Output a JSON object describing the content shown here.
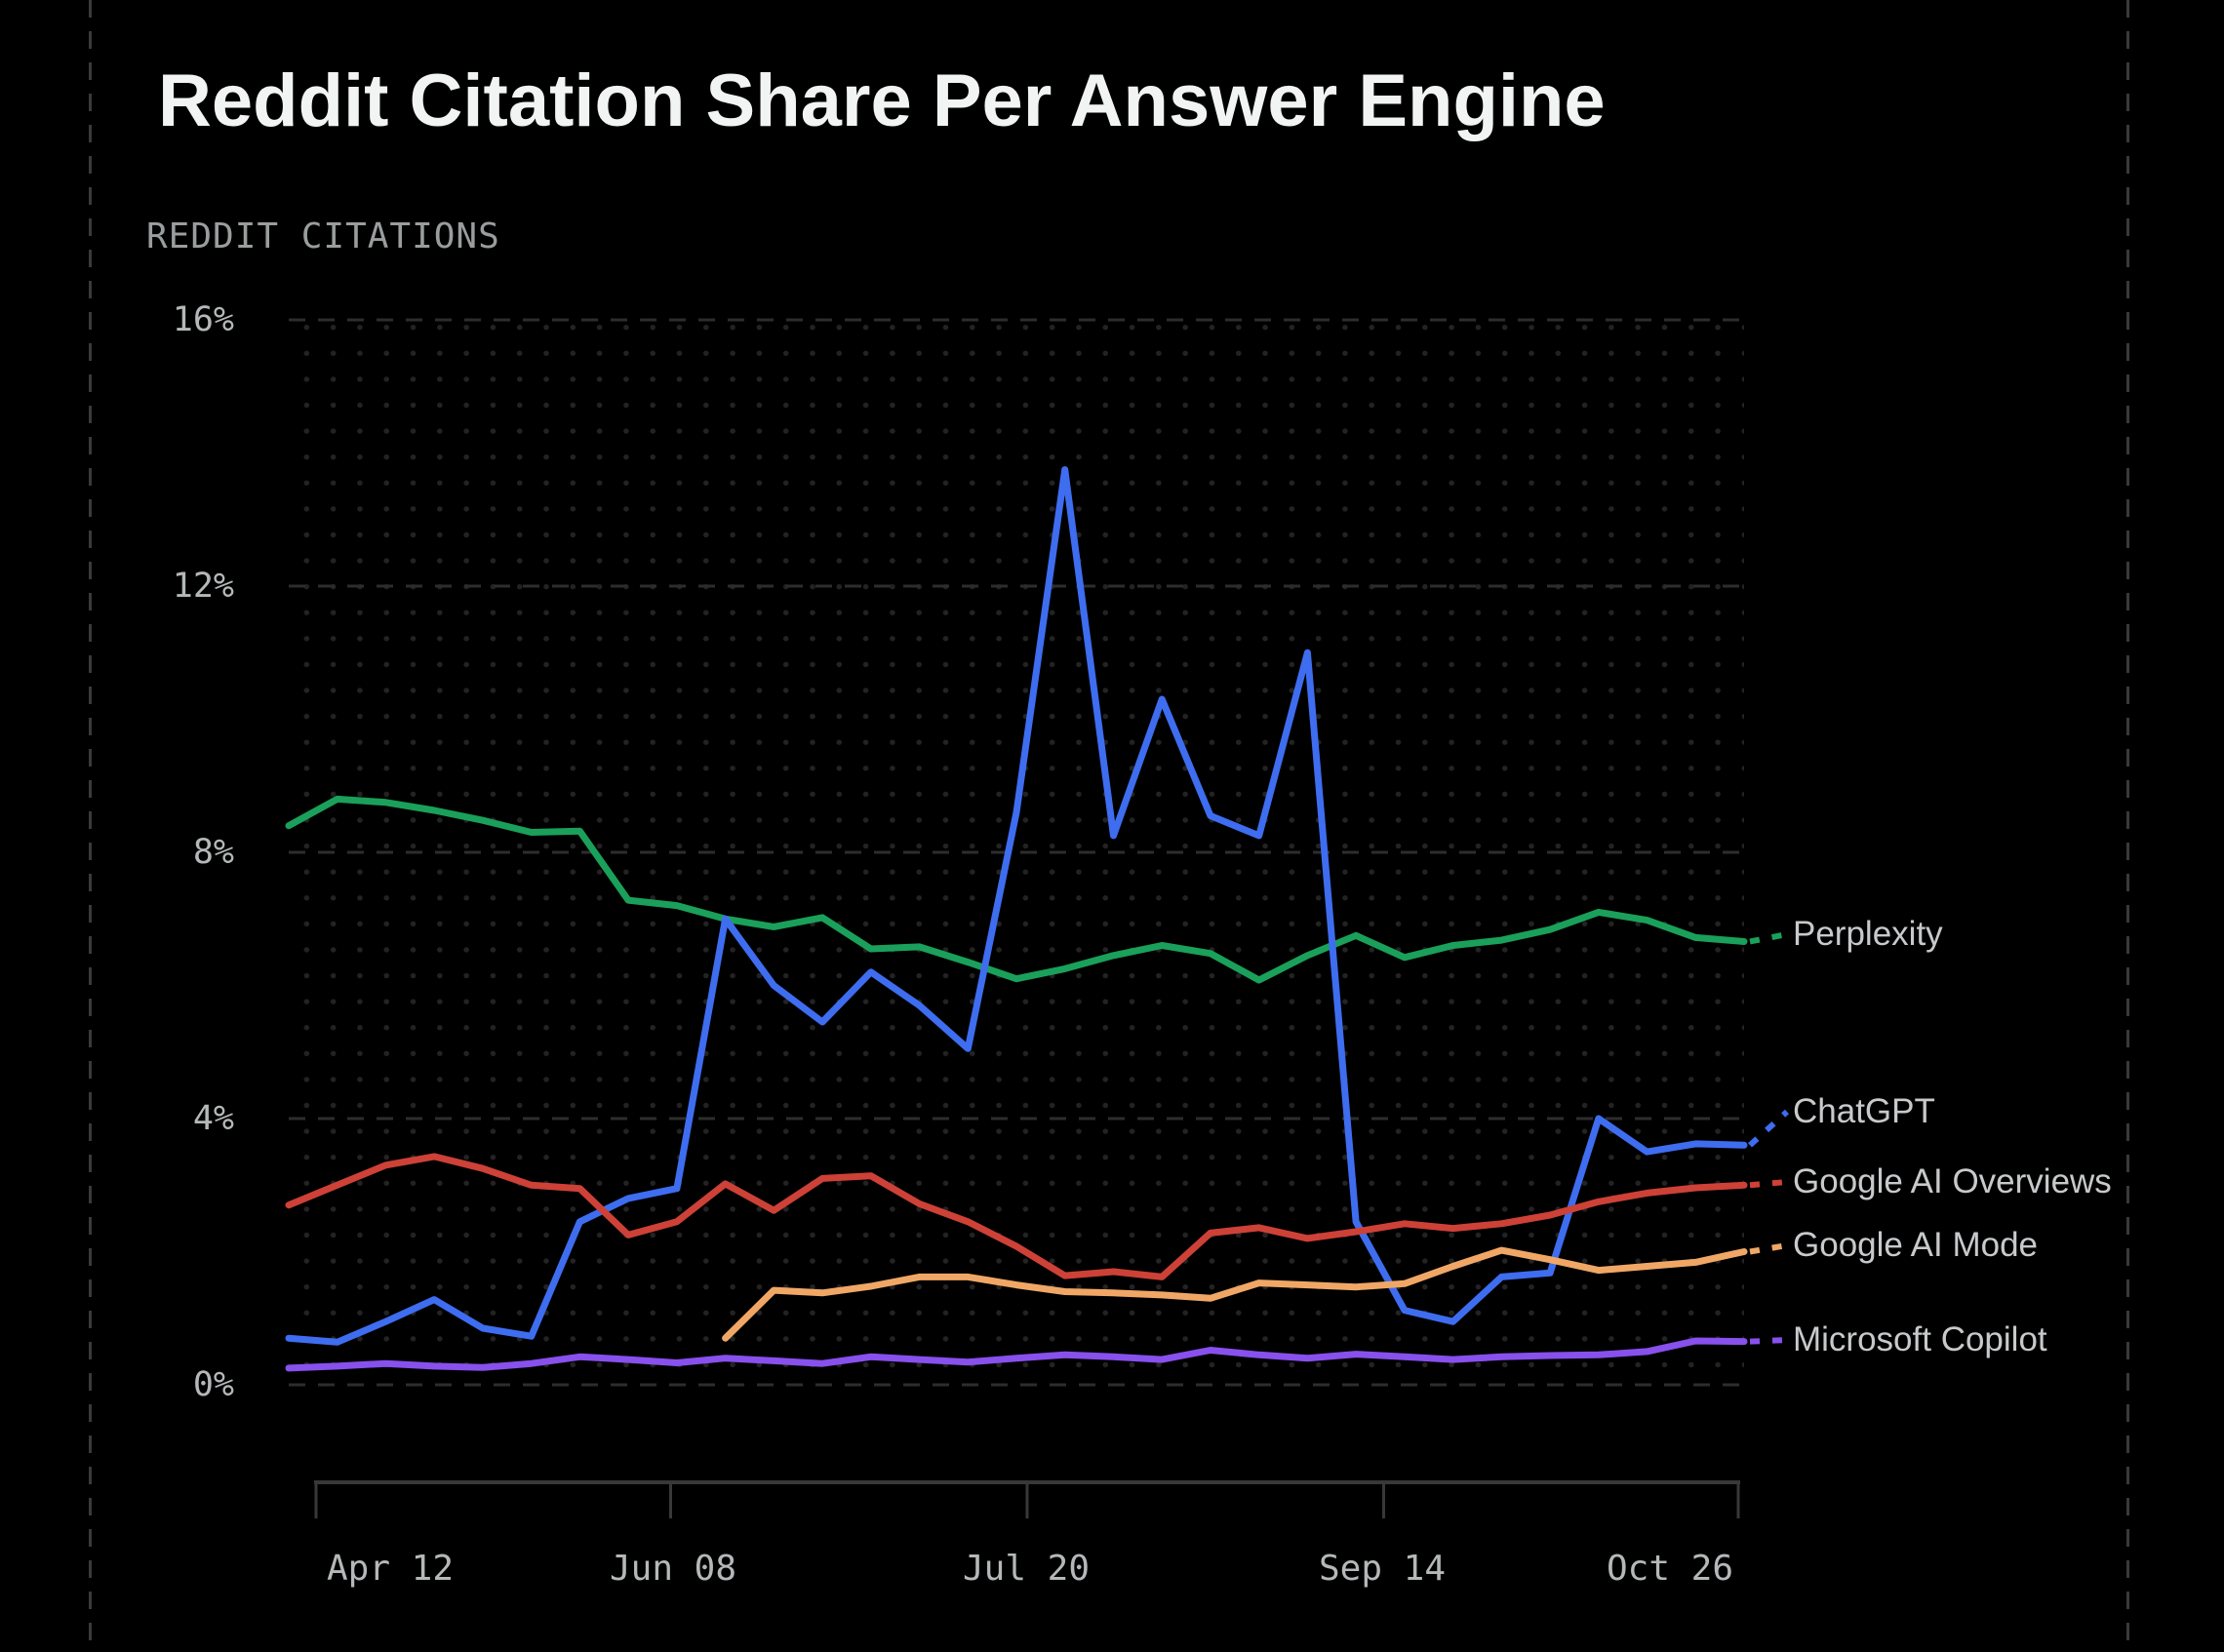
{
  "chart_data": {
    "type": "line",
    "title": "Reddit Citation Share Per Answer Engine",
    "ylabel": "REDDIT CITATIONS",
    "xlabel": "",
    "ylim": [
      0,
      16
    ],
    "grid": "dashed horizontal gridlines at each y tick, faint dot-matrix background",
    "legend_position": "right, labels connected by dotted leader lines",
    "y_tick_labels": [
      "16%",
      "12%",
      "8%",
      "4%",
      "0%"
    ],
    "x_tick_labels": [
      "Apr 12",
      "Jun 08",
      "Jul 20",
      "Sep 14",
      "Oct 26"
    ],
    "series": [
      {
        "name": "Perplexity",
        "color": "#1aa05a",
        "values": [
          8.4,
          8.8,
          8.75,
          8.63,
          8.48,
          8.3,
          8.32,
          7.28,
          7.2,
          7.0,
          6.88,
          7.02,
          6.55,
          6.58,
          6.35,
          6.1,
          6.25,
          6.45,
          6.6,
          6.48,
          6.08,
          6.45,
          6.75,
          6.42,
          6.6,
          6.68,
          6.84,
          7.1,
          6.98,
          6.72,
          6.66
        ]
      },
      {
        "name": "ChatGPT",
        "color": "#3e6df0",
        "values": [
          0.7,
          0.64,
          0.95,
          1.28,
          0.85,
          0.73,
          2.45,
          2.8,
          2.95,
          7.0,
          6.0,
          5.45,
          6.2,
          5.7,
          5.05,
          8.6,
          13.75,
          8.25,
          10.3,
          8.55,
          8.25,
          11.0,
          2.45,
          1.12,
          0.95,
          1.62,
          1.68,
          4.0,
          3.5,
          3.62,
          3.6
        ]
      },
      {
        "name": "Google AI Overviews",
        "color": "#cd4137",
        "values": [
          2.7,
          3.0,
          3.3,
          3.43,
          3.25,
          3.0,
          2.95,
          2.25,
          2.45,
          3.02,
          2.62,
          3.1,
          3.14,
          2.72,
          2.45,
          2.08,
          1.64,
          1.7,
          1.62,
          2.28,
          2.36,
          2.2,
          2.3,
          2.42,
          2.35,
          2.42,
          2.55,
          2.75,
          2.88,
          2.96,
          3.0
        ]
      },
      {
        "name": "Google AI Mode",
        "color": "#f0a766",
        "values": [
          null,
          null,
          null,
          null,
          null,
          null,
          null,
          null,
          null,
          0.7,
          1.42,
          1.38,
          1.48,
          1.62,
          1.62,
          1.5,
          1.4,
          1.38,
          1.35,
          1.3,
          1.53,
          1.5,
          1.47,
          1.52,
          1.78,
          2.02,
          1.88,
          1.72,
          1.78,
          1.84,
          2.0
        ]
      },
      {
        "name": "Microsoft Copilot",
        "color": "#8850ec",
        "values": [
          0.25,
          0.28,
          0.32,
          0.28,
          0.26,
          0.32,
          0.42,
          0.38,
          0.33,
          0.4,
          0.36,
          0.32,
          0.42,
          0.38,
          0.34,
          0.4,
          0.45,
          0.42,
          0.38,
          0.52,
          0.45,
          0.4,
          0.46,
          0.42,
          0.38,
          0.42,
          0.44,
          0.45,
          0.5,
          0.66,
          0.65
        ]
      }
    ]
  },
  "style": {
    "background": "#000000",
    "title_color": "#f2f4f4",
    "axis_label_color": "#b5b8b9",
    "subtitle_color": "#9a9d9e",
    "legend_text_color": "#c7c9cb",
    "gridline_color": "#2d2d2d",
    "dot_grid_color": "#232323",
    "axis_bracket_color": "#383838",
    "page_border_dash_color": "#3a3a3a"
  }
}
